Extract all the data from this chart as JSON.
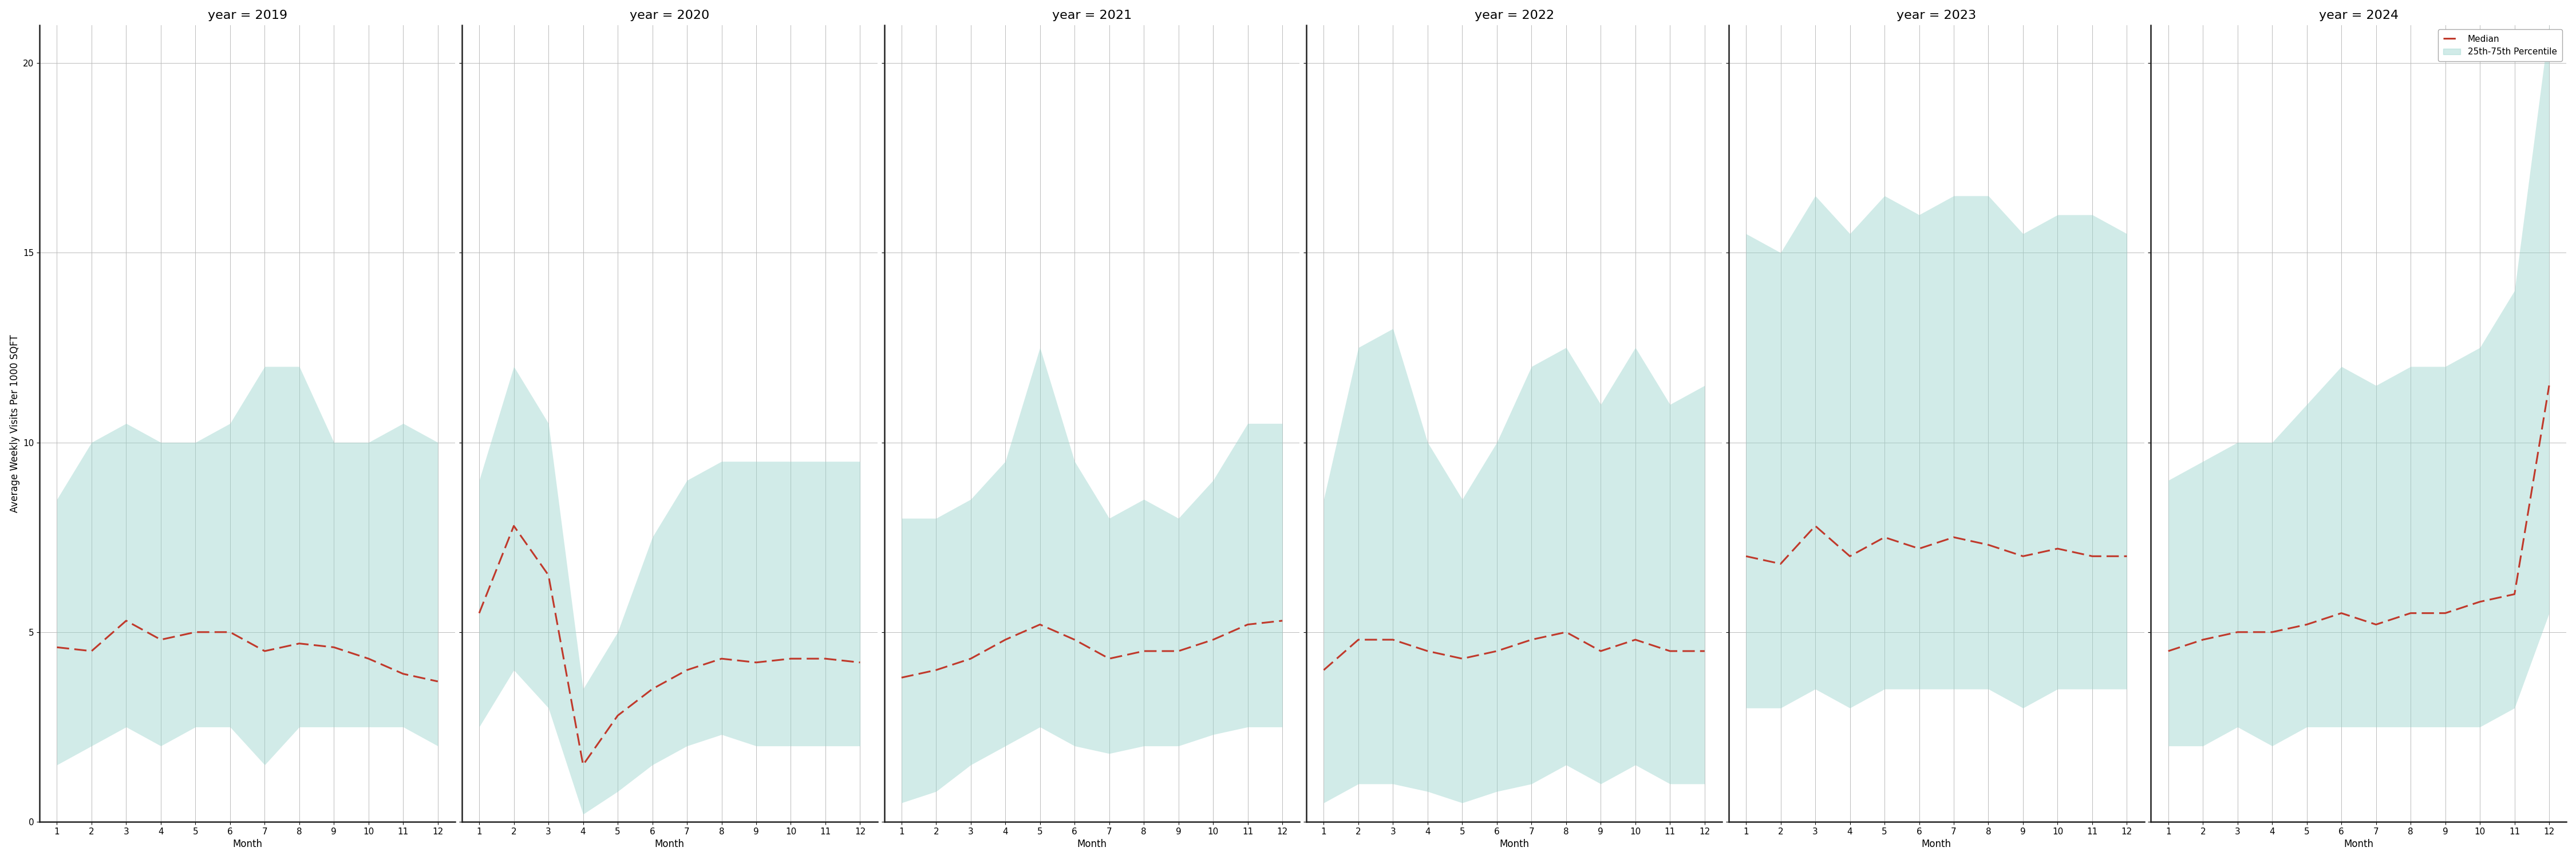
{
  "years": [
    2019,
    2020,
    2021,
    2022,
    2023,
    2024
  ],
  "months": [
    1,
    2,
    3,
    4,
    5,
    6,
    7,
    8,
    9,
    10,
    11,
    12
  ],
  "median": {
    "2019": [
      4.6,
      4.5,
      5.3,
      4.8,
      5.0,
      5.0,
      4.5,
      4.7,
      4.6,
      4.3,
      3.9,
      3.7
    ],
    "2020": [
      5.5,
      7.8,
      6.5,
      1.5,
      2.8,
      3.5,
      4.0,
      4.3,
      4.2,
      4.3,
      4.3,
      4.2
    ],
    "2021": [
      3.8,
      4.0,
      4.3,
      4.8,
      5.2,
      4.8,
      4.3,
      4.5,
      4.5,
      4.8,
      5.2,
      5.3
    ],
    "2022": [
      4.0,
      4.8,
      4.8,
      4.5,
      4.3,
      4.5,
      4.8,
      5.0,
      4.5,
      4.8,
      4.5,
      4.5
    ],
    "2023": [
      7.0,
      6.8,
      7.8,
      7.0,
      7.5,
      7.2,
      7.5,
      7.3,
      7.0,
      7.2,
      7.0,
      7.0
    ],
    "2024": [
      4.5,
      4.8,
      5.0,
      5.0,
      5.2,
      5.5,
      5.2,
      5.5,
      5.5,
      5.8,
      6.0,
      11.5
    ]
  },
  "p25": {
    "2019": [
      1.5,
      2.0,
      2.5,
      2.0,
      2.5,
      2.5,
      1.5,
      2.5,
      2.5,
      2.5,
      2.5,
      2.0
    ],
    "2020": [
      2.5,
      4.0,
      3.0,
      0.2,
      0.8,
      1.5,
      2.0,
      2.3,
      2.0,
      2.0,
      2.0,
      2.0
    ],
    "2021": [
      0.5,
      0.8,
      1.5,
      2.0,
      2.5,
      2.0,
      1.8,
      2.0,
      2.0,
      2.3,
      2.5,
      2.5
    ],
    "2022": [
      0.5,
      1.0,
      1.0,
      0.8,
      0.5,
      0.8,
      1.0,
      1.5,
      1.0,
      1.5,
      1.0,
      1.0
    ],
    "2023": [
      3.0,
      3.0,
      3.5,
      3.0,
      3.5,
      3.5,
      3.5,
      3.5,
      3.0,
      3.5,
      3.5,
      3.5
    ],
    "2024": [
      2.0,
      2.0,
      2.5,
      2.0,
      2.5,
      2.5,
      2.5,
      2.5,
      2.5,
      2.5,
      3.0,
      5.5
    ]
  },
  "p75": {
    "2019": [
      8.5,
      10.0,
      10.5,
      10.0,
      10.0,
      10.5,
      12.0,
      12.0,
      10.0,
      10.0,
      10.5,
      10.0
    ],
    "2020": [
      9.0,
      12.0,
      10.5,
      3.5,
      5.0,
      7.5,
      9.0,
      9.5,
      9.5,
      9.5,
      9.5,
      9.5
    ],
    "2021": [
      8.0,
      8.0,
      8.5,
      9.5,
      12.5,
      9.5,
      8.0,
      8.5,
      8.0,
      9.0,
      10.5,
      10.5
    ],
    "2022": [
      8.5,
      12.5,
      13.0,
      10.0,
      8.5,
      10.0,
      12.0,
      12.5,
      11.0,
      12.5,
      11.0,
      11.5
    ],
    "2023": [
      15.5,
      15.0,
      16.5,
      15.5,
      16.5,
      16.0,
      16.5,
      16.5,
      15.5,
      16.0,
      16.0,
      15.5
    ],
    "2024": [
      9.0,
      9.5,
      10.0,
      10.0,
      11.0,
      12.0,
      11.5,
      12.0,
      12.0,
      12.5,
      14.0,
      21.0
    ]
  },
  "ylim": [
    0,
    21
  ],
  "yticks": [
    0,
    5,
    10,
    15,
    20
  ],
  "xticks": [
    1,
    2,
    3,
    4,
    5,
    6,
    7,
    8,
    9,
    10,
    11,
    12
  ],
  "median_color": "#c0392b",
  "fill_color": "#99d4cc",
  "fill_alpha": 0.45,
  "ylabel": "Average Weekly Visits Per 1000 SQFT",
  "xlabel": "Month",
  "legend_median": "Median",
  "legend_fill": "25th-75th Percentile",
  "background_color": "#ffffff",
  "grid_color": "#bbbbbb",
  "spine_color": "#222222",
  "title_fontsize": 16,
  "label_fontsize": 12,
  "tick_fontsize": 11
}
